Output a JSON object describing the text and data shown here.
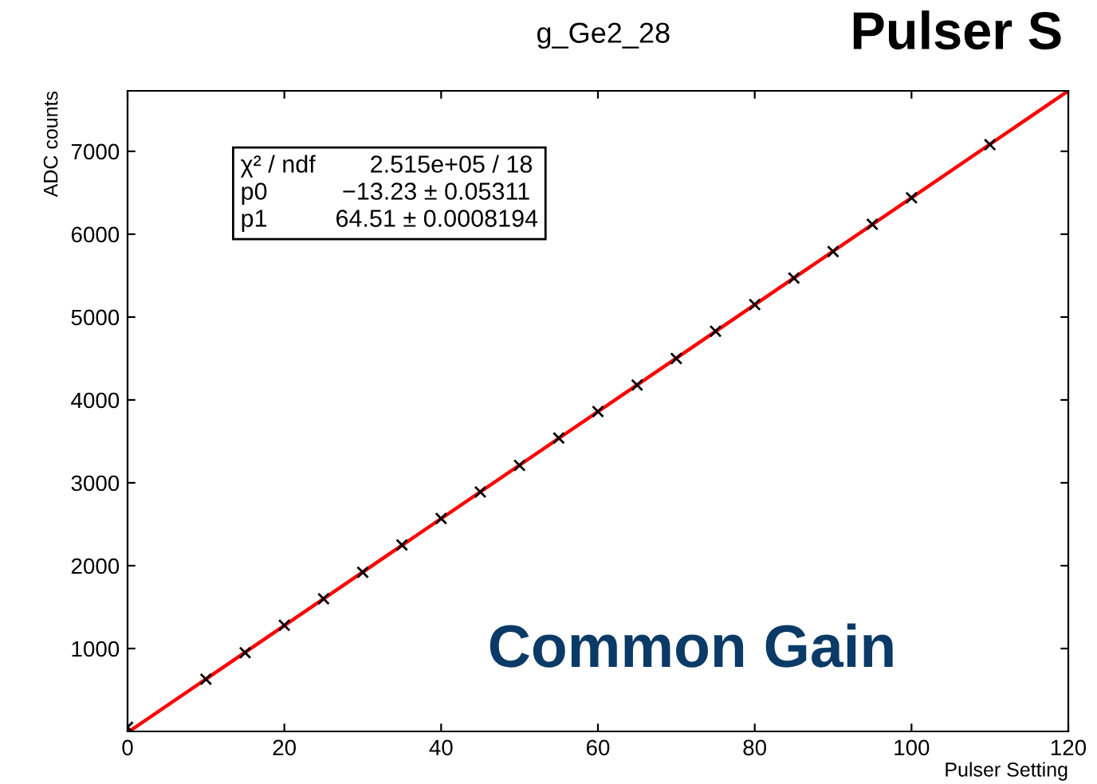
{
  "chart_data": {
    "type": "scatter",
    "title": "g_Ge2_28",
    "subtitle": "Pulser S",
    "xlabel": "Pulser Setting",
    "ylabel": "ADC counts",
    "annotations": [
      "χ² / ndf        2.515e+05 / 18",
      "p0           −13.23 ± 0.05311",
      "p1          64.51 ± 0.0008194",
      "Common Gain"
    ],
    "x": [
      0,
      10,
      15,
      20,
      25,
      30,
      35,
      40,
      45,
      50,
      55,
      60,
      65,
      70,
      75,
      80,
      85,
      90,
      95,
      100,
      110
    ],
    "series": [
      {
        "color": "#000000",
        "marker": "cross",
        "values": [
          50,
          630,
          950,
          1280,
          1600,
          1920,
          2250,
          2570,
          2890,
          3210,
          3540,
          3860,
          4180,
          4500,
          4830,
          5150,
          5470,
          5790,
          6120,
          6440,
          7080
        ]
      },
      {
        "type": "line",
        "color": "#ff0000",
        "x": [
          0.2,
          120
        ],
        "values": [
          0,
          7730
        ]
      }
    ],
    "xlim": [
      0,
      120
    ],
    "ylim": [
      0,
      7730
    ],
    "xticks": [
      0,
      20,
      40,
      60,
      80,
      100,
      120
    ],
    "yticks": [
      1000,
      2000,
      3000,
      4000,
      5000,
      6000,
      7000
    ],
    "grid": false,
    "legend": false
  }
}
